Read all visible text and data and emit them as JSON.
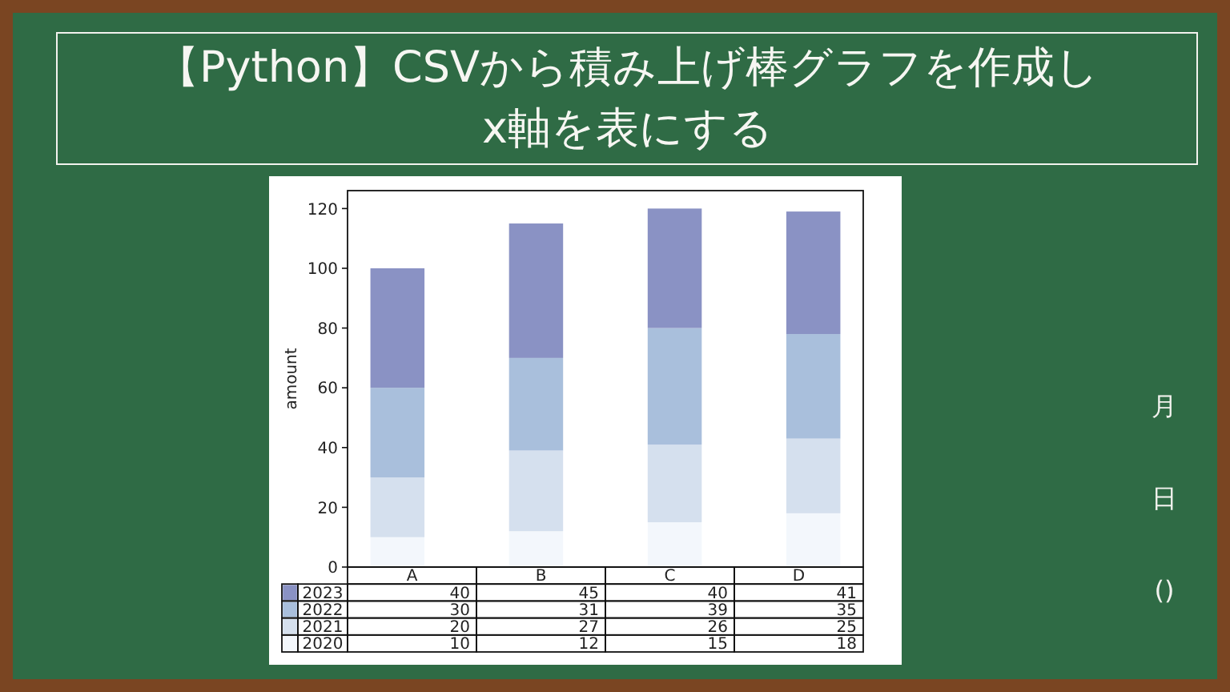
{
  "chart_data": {
    "type": "bar",
    "title": "【Python】CSVから積み上げ棒グラフを作成し x軸を表にする",
    "ylabel": "amount",
    "categories": [
      "A",
      "B",
      "C",
      "D"
    ],
    "series": [
      {
        "name": "2020",
        "color": "#f3f7fc",
        "values": [
          10,
          12,
          15,
          18
        ]
      },
      {
        "name": "2021",
        "color": "#d5e0ee",
        "values": [
          20,
          27,
          26,
          25
        ]
      },
      {
        "name": "2022",
        "color": "#a9bfdc",
        "values": [
          30,
          31,
          39,
          35
        ]
      },
      {
        "name": "2023",
        "color": "#8a92c4",
        "values": [
          40,
          45,
          40,
          41
        ]
      }
    ],
    "stacked": true,
    "ylim": [
      0,
      126
    ],
    "yticks": [
      0,
      20,
      40,
      60,
      80,
      100,
      120
    ],
    "data_labels": true,
    "legend": "bottom left",
    "annotations": [
      "月",
      "日",
      "()"
    ]
  }
}
